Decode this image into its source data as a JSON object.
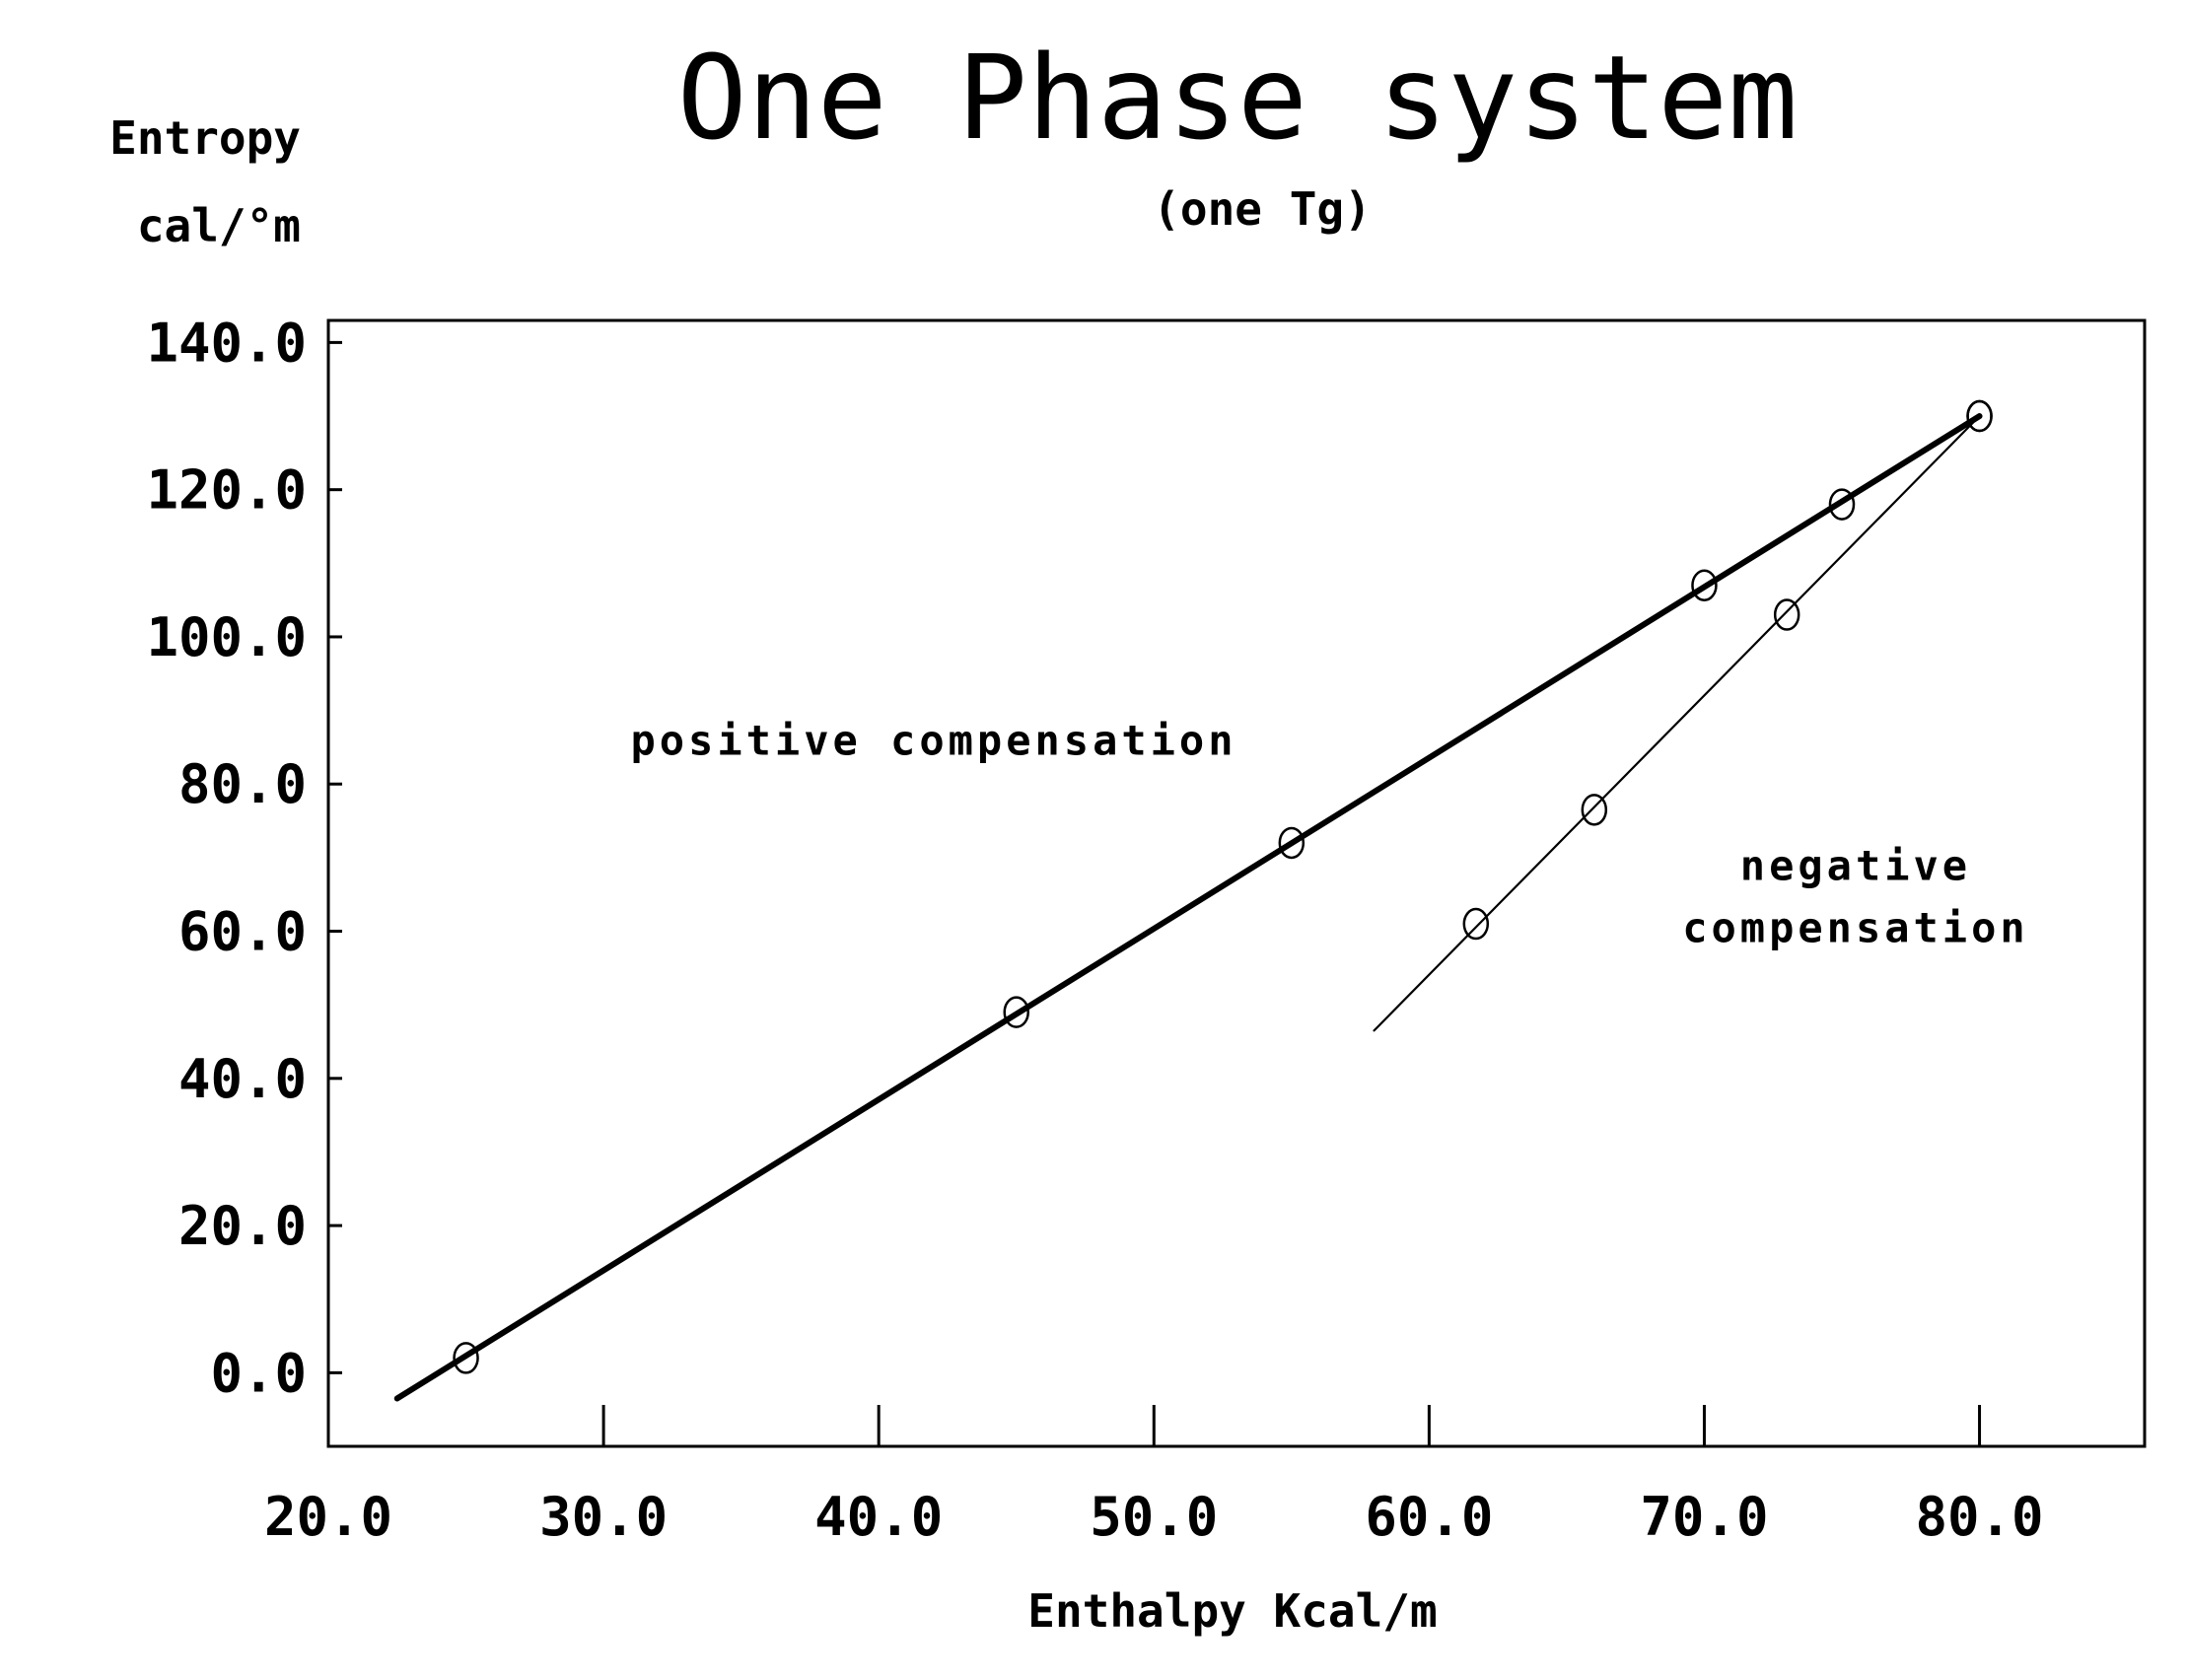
{
  "chart_data": {
    "type": "scatter",
    "title": "One Phase system",
    "subtitle": "(one Tg)",
    "ylabel_line1": "Entropy",
    "ylabel_line2": "cal/°m",
    "xlabel": "Enthalpy Kcal/m",
    "xlim": [
      20,
      86
    ],
    "ylim": [
      -10,
      143
    ],
    "x_ticks": [
      20,
      30,
      40,
      50,
      60,
      70,
      80
    ],
    "x_tick_labels": [
      "20.0",
      "30.0",
      "40.0",
      "50.0",
      "60.0",
      "70.0",
      "80.0"
    ],
    "y_ticks": [
      0,
      20,
      40,
      60,
      80,
      100,
      120,
      140
    ],
    "y_tick_labels": [
      "0.0",
      "20.0",
      "40.0",
      "60.0",
      "80.0",
      "100.0",
      "120.0",
      "140.0"
    ],
    "grid": false,
    "series": [
      {
        "points": [
          [
            25,
            2
          ],
          [
            45,
            49
          ],
          [
            55,
            72
          ],
          [
            70,
            107
          ],
          [
            75,
            118
          ],
          [
            80,
            130
          ]
        ],
        "line": [
          [
            22.5,
            -3.5
          ],
          [
            80,
            130
          ]
        ]
      },
      {
        "points": [
          [
            61.7,
            61
          ],
          [
            66,
            76.5
          ],
          [
            73,
            103
          ],
          [
            80,
            130
          ]
        ],
        "line": [
          [
            58,
            46.5
          ],
          [
            80,
            130
          ]
        ]
      }
    ],
    "annotations": [
      {
        "text": "positive compensation",
        "x": 42,
        "y": 84
      },
      {
        "text": "negative",
        "x": 75.5,
        "y": 67
      },
      {
        "text": "compensation",
        "x": 75.5,
        "y": 58.5
      }
    ]
  }
}
